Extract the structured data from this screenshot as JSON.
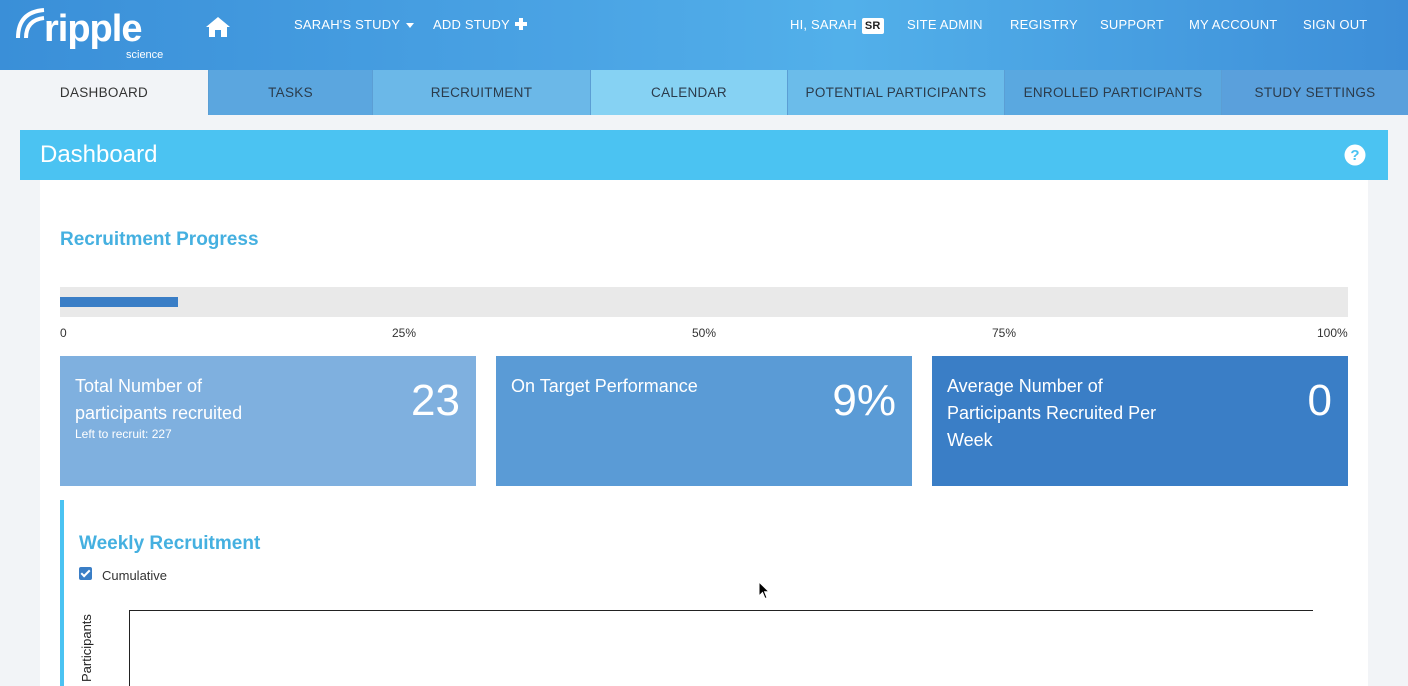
{
  "app": {
    "logo_text": "ripple",
    "logo_subtext": "science"
  },
  "topnav": {
    "study_label": "SARAH'S STUDY",
    "add_study_label": "ADD STUDY",
    "greeting": "HI, SARAH",
    "initials": "SR",
    "site_admin": "SITE ADMIN",
    "registry": "REGISTRY",
    "support": "SUPPORT",
    "my_account": "MY ACCOUNT",
    "sign_out": "SIGN OUT"
  },
  "tabs": [
    {
      "label": "DASHBOARD",
      "active": true
    },
    {
      "label": "TASKS",
      "active": false
    },
    {
      "label": "RECRUITMENT",
      "active": false
    },
    {
      "label": "CALENDAR",
      "active": false
    },
    {
      "label": "POTENTIAL PARTICIPANTS",
      "active": false
    },
    {
      "label": "ENROLLED PARTICIPANTS",
      "active": false
    },
    {
      "label": "STUDY SETTINGS",
      "active": false
    }
  ],
  "panel": {
    "title": "Dashboard"
  },
  "recruitment_progress": {
    "title": "Recruitment Progress",
    "percent": 9.2,
    "ticks": [
      "0",
      "25%",
      "50%",
      "75%",
      "100%"
    ]
  },
  "stats": [
    {
      "label": "Total Number of participants recruited",
      "sub": "Left to recruit: 227",
      "value": "23",
      "color": "#7fb0df"
    },
    {
      "label": "On Target Performance",
      "sub": "",
      "value": "9%",
      "color": "#5a9bd6"
    },
    {
      "label": "Average Number of Participants Recruited Per Week",
      "sub": "",
      "value": "0",
      "color": "#3a7ec6"
    }
  ],
  "weekly": {
    "title": "Weekly Recruitment",
    "cumulative_label": "Cumulative",
    "cumulative_checked": true,
    "y_axis_label": "Participants"
  },
  "colors": {
    "topbar": "#4aa3e4",
    "panel_header": "#4bc3f2",
    "accent_text": "#45b0e0",
    "progress_fill": "#3a7ec6"
  },
  "icons": {
    "home": "home-icon",
    "help": "question-circle-icon",
    "caret": "caret-down-icon",
    "plus": "plus-icon"
  }
}
